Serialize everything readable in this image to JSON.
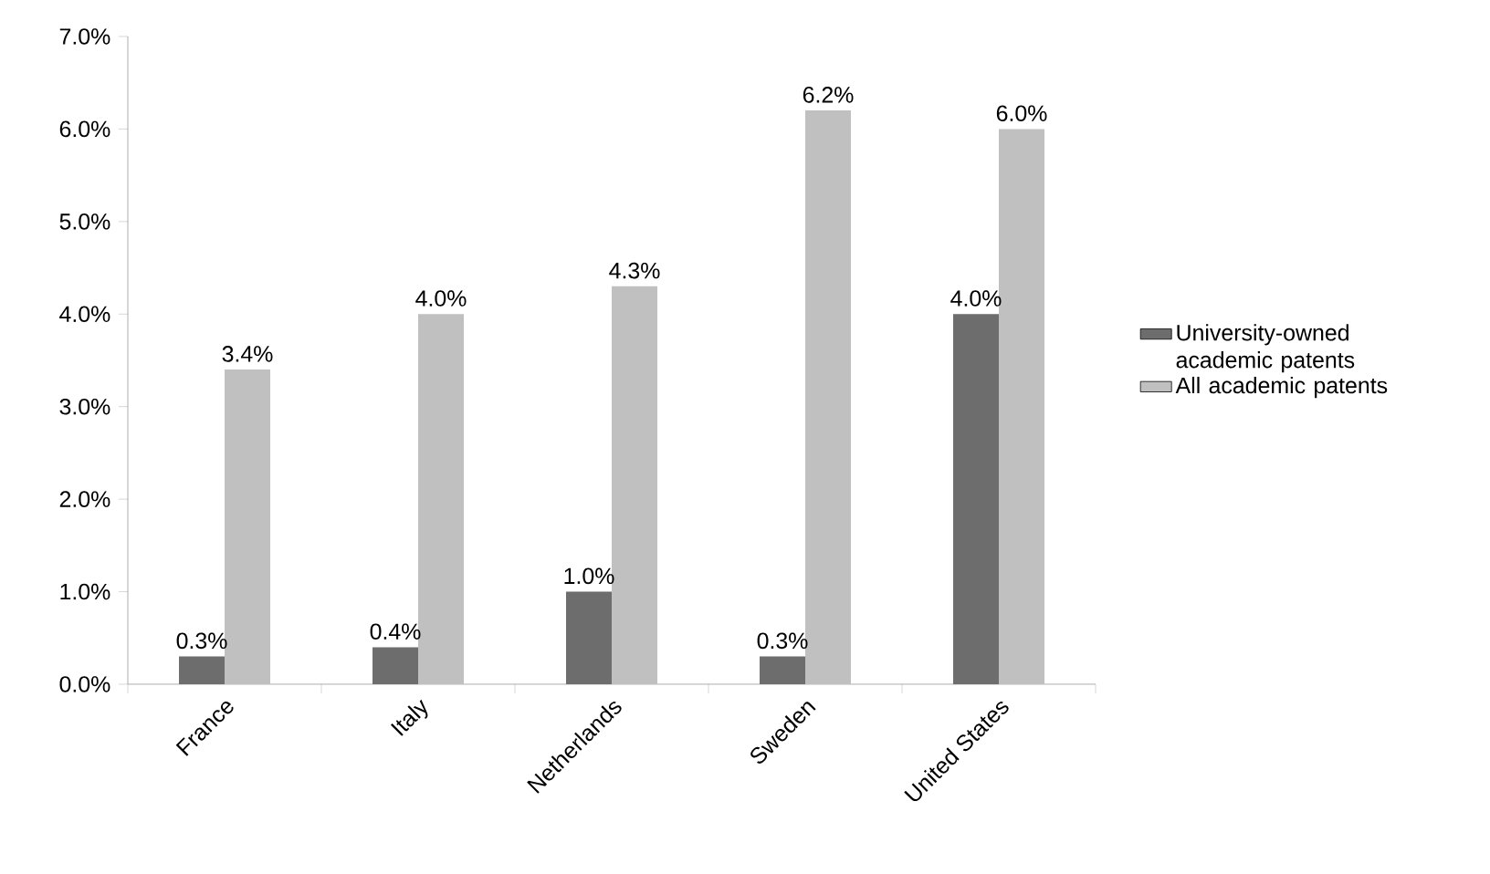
{
  "chart_data": {
    "type": "bar",
    "categories": [
      "France",
      "Italy",
      "Netherlands",
      "Sweden",
      "United States"
    ],
    "series": [
      {
        "name": "University-owned academic patents",
        "color": "#6d6d6d",
        "values": [
          0.3,
          0.4,
          1.0,
          0.3,
          4.0
        ],
        "value_labels": [
          "0.3%",
          "0.4%",
          "1.0%",
          "0.3%",
          "4.0%"
        ]
      },
      {
        "name": "All academic patents",
        "color": "#c0c0c0",
        "values": [
          3.4,
          4.0,
          4.3,
          6.2,
          6.0
        ],
        "value_labels": [
          "3.4%",
          "4.0%",
          "4.3%",
          "6.2%",
          "6.0%"
        ]
      }
    ],
    "ylim": [
      0,
      7
    ],
    "yticks": [
      {
        "value": 0,
        "label": "0.0%"
      },
      {
        "value": 1,
        "label": "1.0%"
      },
      {
        "value": 2,
        "label": "2.0%"
      },
      {
        "value": 3,
        "label": "3.0%"
      },
      {
        "value": 4,
        "label": "4.0%"
      },
      {
        "value": 5,
        "label": "5.0%"
      },
      {
        "value": 6,
        "label": "6.0%"
      },
      {
        "value": 7,
        "label": "7.0%"
      }
    ],
    "grid": false,
    "legend": "right"
  }
}
